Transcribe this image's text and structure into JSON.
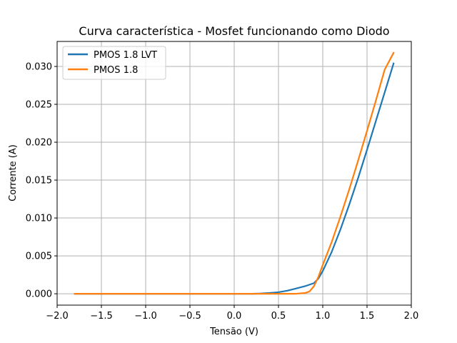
{
  "chart_data": {
    "type": "line",
    "title": "Curva característica - Mosfet funcionando como Diodo",
    "xlabel": "Tensão (V)",
    "ylabel": "Corrente (A)",
    "xlim": [
      -2.0,
      2.0
    ],
    "ylim": [
      -0.0015,
      0.0333
    ],
    "xticks": [
      -2.0,
      -1.5,
      -1.0,
      -0.5,
      0.0,
      0.5,
      1.0,
      1.5,
      2.0
    ],
    "xtick_labels": [
      "−2.0",
      "−1.5",
      "−1.0",
      "−0.5",
      "0.0",
      "0.5",
      "1.0",
      "1.5",
      "2.0"
    ],
    "yticks": [
      0.0,
      0.005,
      0.01,
      0.015,
      0.02,
      0.025,
      0.03
    ],
    "ytick_labels": [
      "0.000",
      "0.005",
      "0.010",
      "0.015",
      "0.020",
      "0.025",
      "0.030"
    ],
    "grid": true,
    "legend_position": "top-left",
    "series": [
      {
        "name": "PMOS 1.8 LVT",
        "color": "#1f77b4",
        "x": [
          -1.8,
          -1.0,
          0.0,
          0.2,
          0.3,
          0.4,
          0.5,
          0.6,
          0.7,
          0.8,
          0.9,
          0.95,
          1.0,
          1.1,
          1.2,
          1.3,
          1.4,
          1.5,
          1.6,
          1.7,
          1.8
        ],
        "y": [
          0.0,
          0.0,
          0.0,
          0.0,
          3e-05,
          0.0001,
          0.0002,
          0.0004,
          0.0007,
          0.001,
          0.0014,
          0.002,
          0.003,
          0.0055,
          0.0085,
          0.0118,
          0.0153,
          0.019,
          0.0228,
          0.0266,
          0.0304
        ]
      },
      {
        "name": "PMOS 1.8",
        "color": "#ff7f0e",
        "x": [
          -1.8,
          -1.0,
          0.0,
          0.5,
          0.7,
          0.8,
          0.85,
          0.9,
          0.95,
          1.0,
          1.1,
          1.2,
          1.3,
          1.4,
          1.5,
          1.6,
          1.7,
          1.8
        ],
        "y": [
          0.0,
          0.0,
          0.0,
          0.0,
          0.0,
          0.0001,
          0.0003,
          0.001,
          0.0022,
          0.0038,
          0.0068,
          0.0102,
          0.0138,
          0.0176,
          0.0215,
          0.0255,
          0.0296,
          0.0318
        ]
      }
    ]
  }
}
